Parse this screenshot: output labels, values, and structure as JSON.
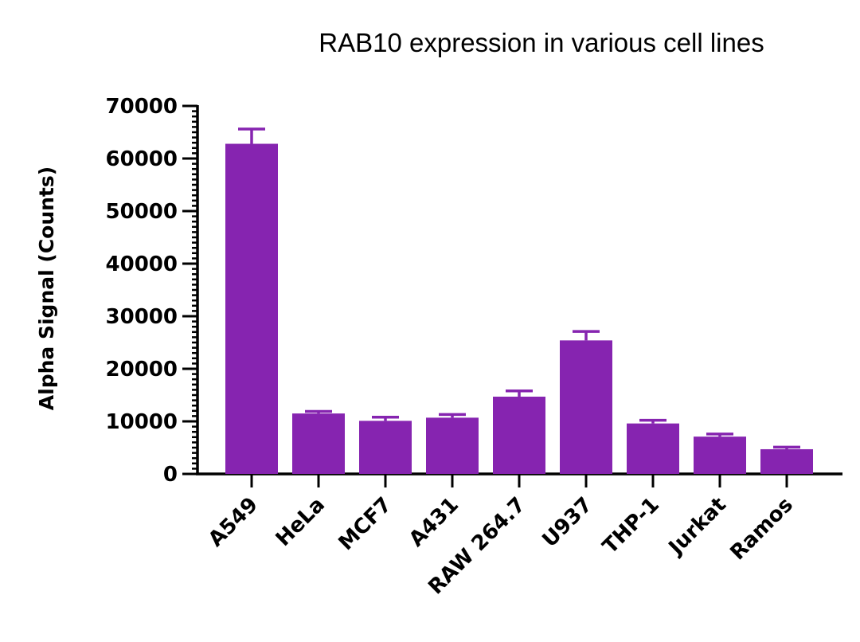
{
  "chart_data": {
    "type": "bar",
    "title": "RAB10 expression in various cell lines",
    "xlabel": "",
    "ylabel": "Alpha Signal (Counts)",
    "ylim": [
      0,
      70000
    ],
    "yticks": [
      0,
      10000,
      20000,
      30000,
      40000,
      50000,
      60000,
      70000
    ],
    "ytick_labels": [
      "0",
      "10000",
      "20000",
      "30000",
      "40000",
      "50000",
      "60000",
      "70000"
    ],
    "categories": [
      "A549",
      "HeLa",
      "MCF7",
      "A431",
      "RAW 264.7",
      "U937",
      "THP-1",
      "Jurkat",
      "Ramos"
    ],
    "values": [
      62800,
      11500,
      10100,
      10700,
      14700,
      25400,
      9600,
      7100,
      4700
    ],
    "errors": [
      2800,
      400,
      700,
      600,
      1100,
      1700,
      600,
      500,
      400
    ],
    "bar_color": "#8624b0",
    "grid": false,
    "legend": "none"
  }
}
